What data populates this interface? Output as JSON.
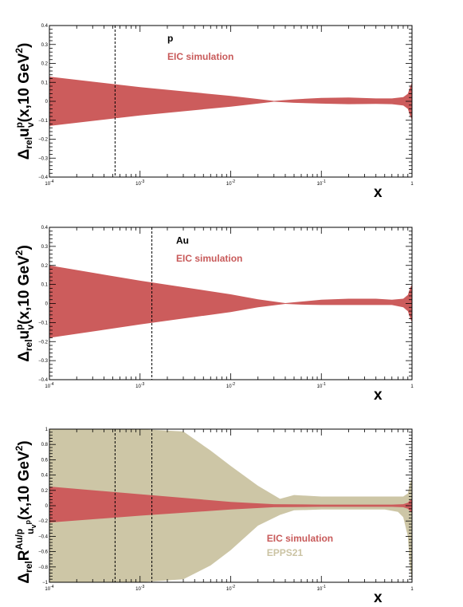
{
  "chart_data": [
    {
      "type": "area",
      "xscale": "log",
      "xlim": [
        0.0001,
        1
      ],
      "ylim": [
        -0.4,
        0.4
      ],
      "xlabel": "x",
      "ylabel": {
        "main": "Δ",
        "rel": "rel",
        "symbol": "u",
        "sup": "p",
        "sub": "v",
        "tail": "(x,10 GeV",
        "power": "2",
        "close": ")"
      },
      "x_tick_labels": [
        "10^-4",
        "10^-3",
        "10^-2",
        "10^-1",
        "1"
      ],
      "y_ticks": [
        0.4,
        0.3,
        0.2,
        0.1,
        0,
        -0.1,
        -0.2,
        -0.3,
        -0.4
      ],
      "y_tick_labels": [
        "0.4",
        "0.3",
        "0.2",
        "0.1",
        "0",
        "−0.1",
        "−0.2",
        "−0.3",
        "−0.4"
      ],
      "vlines": [
        0.00053
      ],
      "annotations": [
        {
          "text": "p",
          "color": "#000000",
          "x": 0.002,
          "y": 0.315
        },
        {
          "text": "EIC simulation",
          "color": "#c85a5a",
          "x": 0.002,
          "y": 0.22
        }
      ],
      "series": [
        {
          "name": "EIC simulation",
          "color": "#cc5c5c",
          "x": [
            0.0001,
            0.001,
            0.01,
            0.02,
            0.03,
            0.05,
            0.1,
            0.2,
            0.4,
            0.6,
            0.8,
            0.9,
            0.95,
            1.0
          ],
          "upper": [
            0.13,
            0.075,
            0.028,
            0.012,
            0.002,
            0.01,
            0.018,
            0.02,
            0.015,
            0.015,
            0.022,
            0.04,
            0.075,
            0.1
          ],
          "lower": [
            -0.13,
            -0.075,
            -0.028,
            -0.012,
            -0.002,
            -0.008,
            -0.012,
            -0.015,
            -0.014,
            -0.015,
            -0.022,
            -0.04,
            -0.075,
            -0.1
          ]
        }
      ]
    },
    {
      "type": "area",
      "xscale": "log",
      "xlim": [
        0.0001,
        1
      ],
      "ylim": [
        -0.4,
        0.4
      ],
      "xlabel": "x",
      "ylabel": {
        "main": "Δ",
        "rel": "rel",
        "symbol": "u",
        "sup": "p",
        "sub": "v",
        "tail": "(x,10 GeV",
        "power": "2",
        "close": ")"
      },
      "x_tick_labels": [
        "10^-4",
        "10^-3",
        "10^-2",
        "10^-1",
        "1"
      ],
      "y_ticks": [
        0.4,
        0.3,
        0.2,
        0.1,
        0,
        -0.1,
        -0.2,
        -0.3,
        -0.4
      ],
      "y_tick_labels": [
        "0.4",
        "0.3",
        "0.2",
        "0.1",
        "0",
        "−0.1",
        "−0.2",
        "−0.3",
        "−0.4"
      ],
      "vlines": [
        0.00135
      ],
      "annotations": [
        {
          "text": "Au",
          "color": "#000000",
          "x": 0.0025,
          "y": 0.315
        },
        {
          "text": "EIC simulation",
          "color": "#c85a5a",
          "x": 0.0025,
          "y": 0.22
        }
      ],
      "series": [
        {
          "name": "EIC simulation",
          "color": "#cc5c5c",
          "x": [
            0.0001,
            0.001,
            0.01,
            0.02,
            0.04,
            0.06,
            0.1,
            0.2,
            0.4,
            0.6,
            0.8,
            0.9,
            0.95,
            1.0
          ],
          "upper": [
            0.2,
            0.12,
            0.048,
            0.022,
            0.002,
            0.01,
            0.02,
            0.025,
            0.025,
            0.02,
            0.025,
            0.045,
            0.08,
            0.1
          ],
          "lower": [
            -0.18,
            -0.11,
            -0.045,
            -0.02,
            -0.002,
            -0.006,
            -0.008,
            -0.008,
            -0.008,
            -0.008,
            -0.02,
            -0.04,
            -0.075,
            -0.1
          ]
        }
      ]
    },
    {
      "type": "area",
      "xscale": "log",
      "xlim": [
        0.0001,
        1
      ],
      "ylim": [
        -1,
        1
      ],
      "xlabel": "x",
      "ylabel": {
        "main": "Δ",
        "rel": "rel",
        "symbol": "R",
        "sup": "Au/p",
        "sub": "u",
        "subsub": "v",
        "subsup": "p",
        "tail": "(x,10 GeV",
        "power": "2",
        "close": ")"
      },
      "x_tick_labels": [
        "10^-4",
        "10^-3",
        "10^-2",
        "10^-1",
        "1"
      ],
      "y_ticks": [
        1,
        0.8,
        0.6,
        0.4,
        0.2,
        0,
        -0.2,
        -0.4,
        -0.6,
        -0.8,
        -1
      ],
      "y_tick_labels": [
        "1",
        "0.8",
        "0.6",
        "0.4",
        "0.2",
        "0",
        "−0.2",
        "−0.4",
        "−0.6",
        "−0.8",
        "−1"
      ],
      "vlines": [
        0.00053,
        0.00135
      ],
      "annotations": [
        {
          "text": "EIC simulation",
          "color": "#c85a5a",
          "x": 0.025,
          "y": -0.47
        },
        {
          "text": "EPPS21",
          "color": "#cbc3a3",
          "x": 0.025,
          "y": -0.655
        }
      ],
      "series": [
        {
          "name": "EPPS21",
          "color": "#cdc6a6",
          "x": [
            0.0001,
            0.001,
            0.003,
            0.006,
            0.01,
            0.02,
            0.035,
            0.05,
            0.1,
            0.2,
            0.5,
            0.7,
            0.8,
            0.9,
            0.95,
            1.0
          ],
          "upper": [
            1.0,
            1.0,
            0.97,
            0.72,
            0.52,
            0.26,
            0.09,
            0.14,
            0.12,
            0.12,
            0.12,
            0.12,
            0.12,
            0.16,
            0.3,
            0.35
          ],
          "lower": [
            -1.0,
            -1.0,
            -0.96,
            -0.78,
            -0.58,
            -0.26,
            -0.12,
            -0.06,
            -0.05,
            -0.05,
            -0.05,
            -0.08,
            -0.15,
            -0.4,
            -0.8,
            -1.0
          ]
        },
        {
          "name": "EIC simulation",
          "color": "#cc5c5c",
          "x": [
            0.0001,
            0.001,
            0.01,
            0.03,
            0.1,
            0.3,
            0.6,
            0.8,
            0.9,
            0.95,
            1.0
          ],
          "upper": [
            0.25,
            0.15,
            0.05,
            0.02,
            0.015,
            0.015,
            0.015,
            0.02,
            0.04,
            0.07,
            0.09
          ],
          "lower": [
            -0.22,
            -0.13,
            -0.05,
            -0.02,
            -0.015,
            -0.015,
            -0.015,
            -0.02,
            -0.04,
            -0.07,
            -0.09
          ]
        }
      ]
    }
  ]
}
